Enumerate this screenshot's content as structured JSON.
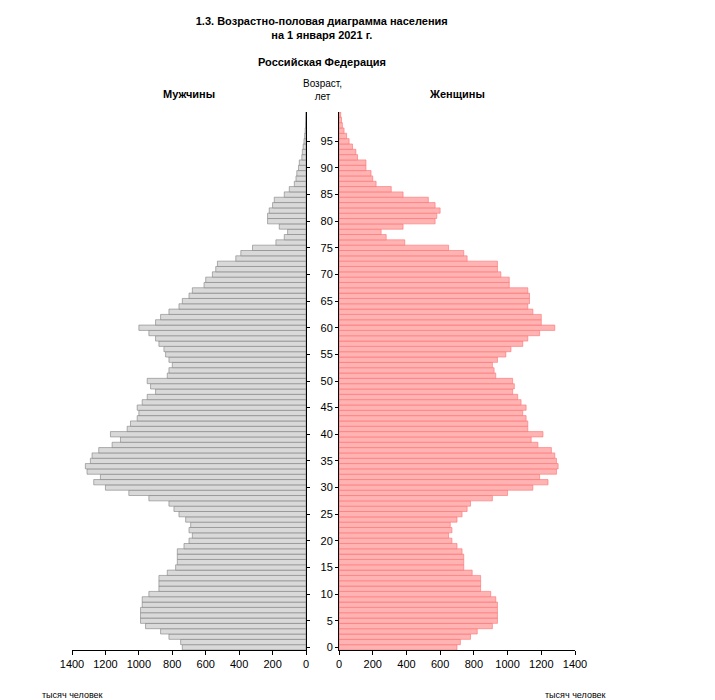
{
  "chart_data": [
    {
      "type": "bar",
      "title": "1.3. Возрастно-половая диаграмма населения\nна 1 января 2021 г.",
      "subtitle": "Российская Федерация",
      "ylabel": "Возраст,\nлет",
      "xlabel": "тысяч человек",
      "orientation": "horizontal",
      "tick_labels": "x",
      "categories": [
        "0",
        null,
        null,
        null,
        null,
        "5",
        null,
        null,
        null,
        null,
        "10",
        null,
        null,
        null,
        null,
        "15",
        null,
        null,
        null,
        null,
        "20",
        null,
        null,
        null,
        null,
        "25",
        null,
        null,
        null,
        null,
        "30",
        null,
        null,
        null,
        null,
        "35",
        null,
        null,
        null,
        null,
        "40",
        null,
        null,
        null,
        null,
        "45",
        null,
        null,
        null,
        null,
        "50",
        null,
        null,
        null,
        null,
        "55",
        null,
        null,
        null,
        null,
        "60",
        null,
        null,
        null,
        null,
        "65",
        null,
        null,
        null,
        null,
        "70",
        null,
        null,
        null,
        null,
        "75",
        null,
        null,
        null,
        null,
        "80",
        null,
        null,
        null,
        null,
        "85",
        null,
        null,
        null,
        null,
        "90",
        null,
        null,
        null,
        null,
        "95",
        null,
        null,
        null,
        null,
        null
      ],
      "series": [
        {
          "name": "Мужчины",
          "color": "#d9d9d9",
          "values": [
            740,
            750,
            820,
            870,
            960,
            990,
            990,
            990,
            980,
            980,
            940,
            880,
            880,
            880,
            830,
            780,
            770,
            770,
            770,
            730,
            700,
            680,
            700,
            690,
            720,
            760,
            790,
            820,
            940,
            1060,
            1200,
            1270,
            1230,
            1310,
            1320,
            1290,
            1280,
            1240,
            1160,
            1110,
            1170,
            1070,
            1050,
            1010,
            1000,
            1010,
            980,
            950,
            900,
            930,
            950,
            830,
            820,
            800,
            820,
            840,
            850,
            880,
            900,
            940,
            1000,
            900,
            870,
            820,
            760,
            740,
            700,
            680,
            610,
            600,
            560,
            540,
            530,
            420,
            390,
            320,
            180,
            130,
            110,
            160,
            230,
            230,
            220,
            200,
            190,
            130,
            100,
            70,
            60,
            55,
            45,
            40,
            25,
            22,
            17,
            12,
            8,
            5,
            3,
            2,
            1
          ]
        }
      ],
      "xlim": [
        1400,
        0
      ],
      "xticks": [
        1400,
        1200,
        1000,
        800,
        600,
        400,
        200,
        0
      ]
    },
    {
      "type": "bar",
      "xlabel": "тысяч человек",
      "orientation": "horizontal",
      "categories": [
        "0",
        null,
        null,
        null,
        null,
        "5",
        null,
        null,
        null,
        null,
        "10",
        null,
        null,
        null,
        null,
        "15",
        null,
        null,
        null,
        null,
        "20",
        null,
        null,
        null,
        null,
        "25",
        null,
        null,
        null,
        null,
        "30",
        null,
        null,
        null,
        null,
        "35",
        null,
        null,
        null,
        null,
        "40",
        null,
        null,
        null,
        null,
        "45",
        null,
        null,
        null,
        null,
        "50",
        null,
        null,
        null,
        null,
        "55",
        null,
        null,
        null,
        null,
        "60",
        null,
        null,
        null,
        null,
        "65",
        null,
        null,
        null,
        null,
        "70",
        null,
        null,
        null,
        null,
        "75",
        null,
        null,
        null,
        null,
        "80",
        null,
        null,
        null,
        null,
        "85",
        null,
        null,
        null,
        null,
        "90",
        null,
        null,
        null,
        null,
        "95",
        null,
        null,
        null,
        null,
        null
      ],
      "series": [
        {
          "name": "Женщины",
          "color": "#ffb3b3",
          "values": [
            700,
            720,
            780,
            820,
            910,
            940,
            940,
            940,
            940,
            930,
            900,
            840,
            840,
            840,
            790,
            740,
            740,
            740,
            730,
            700,
            670,
            650,
            670,
            660,
            700,
            730,
            760,
            780,
            910,
            1000,
            1150,
            1240,
            1190,
            1290,
            1300,
            1290,
            1280,
            1260,
            1180,
            1140,
            1210,
            1120,
            1120,
            1110,
            1090,
            1110,
            1080,
            1060,
            1030,
            1040,
            1030,
            930,
            920,
            910,
            940,
            990,
            1020,
            1090,
            1120,
            1190,
            1280,
            1200,
            1200,
            1150,
            1120,
            1130,
            1130,
            1120,
            1010,
            1010,
            960,
            940,
            940,
            760,
            740,
            650,
            390,
            280,
            250,
            380,
            570,
            580,
            600,
            570,
            530,
            380,
            310,
            220,
            200,
            190,
            160,
            160,
            110,
            100,
            80,
            60,
            45,
            30,
            20,
            15,
            10
          ]
        }
      ],
      "xlim": [
        0,
        1400
      ],
      "xticks": [
        0,
        200,
        400,
        600,
        800,
        1000,
        1200,
        1400
      ]
    }
  ]
}
